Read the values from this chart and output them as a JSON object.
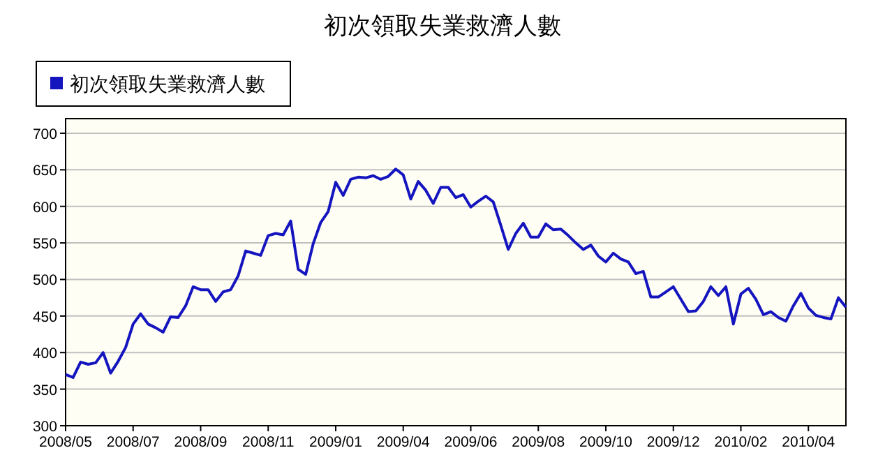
{
  "chart_data": {
    "type": "line",
    "title": "初次領取失業救濟人數",
    "categories": [
      "2008/05",
      null,
      null,
      null,
      null,
      null,
      null,
      null,
      null,
      "2008/07",
      null,
      null,
      null,
      null,
      null,
      null,
      null,
      null,
      "2008/09",
      null,
      null,
      null,
      null,
      null,
      null,
      null,
      null,
      "2008/11",
      null,
      null,
      null,
      null,
      null,
      null,
      null,
      null,
      "2009/01",
      null,
      null,
      null,
      null,
      null,
      null,
      null,
      null,
      "2009/04",
      null,
      null,
      null,
      null,
      null,
      null,
      null,
      null,
      "2009/06",
      null,
      null,
      null,
      null,
      null,
      null,
      null,
      null,
      "2009/08",
      null,
      null,
      null,
      null,
      null,
      null,
      null,
      null,
      "2009/10",
      null,
      null,
      null,
      null,
      null,
      null,
      null,
      null,
      "2009/12",
      null,
      null,
      null,
      null,
      null,
      null,
      null,
      null,
      "2010/02",
      null,
      null,
      null,
      null,
      null,
      null,
      null,
      null,
      "2010/04",
      null,
      null,
      null,
      null,
      null
    ],
    "series": [
      {
        "name": "初次領取失業救濟人數",
        "color": "#1515c0",
        "values": [
          370,
          366,
          387,
          384,
          386,
          400,
          372,
          388,
          407,
          439,
          453,
          439,
          434,
          428,
          449,
          448,
          464,
          490,
          486,
          486,
          470,
          483,
          486,
          505,
          539,
          536,
          533,
          560,
          563,
          561,
          580,
          514,
          507,
          549,
          578,
          593,
          633,
          615,
          637,
          640,
          639,
          642,
          637,
          641,
          651,
          643,
          610,
          634,
          622,
          604,
          626,
          626,
          612,
          616,
          599,
          607,
          614,
          606,
          574,
          541,
          563,
          577,
          558,
          558,
          576,
          568,
          569,
          560,
          550,
          541,
          547,
          532,
          524,
          536,
          528,
          524,
          508,
          511,
          476,
          476,
          483,
          490,
          473,
          456,
          457,
          470,
          490,
          478,
          490,
          439,
          480,
          488,
          473,
          452,
          456,
          448,
          443,
          464,
          481,
          461,
          451,
          448,
          446,
          475,
          462
        ]
      }
    ],
    "ylim": [
      300,
      720
    ],
    "yticks": [
      300,
      350,
      400,
      450,
      500,
      550,
      600,
      650,
      700
    ],
    "grid": "y",
    "legend": "top left",
    "marker": "none",
    "line_style": "solid"
  }
}
